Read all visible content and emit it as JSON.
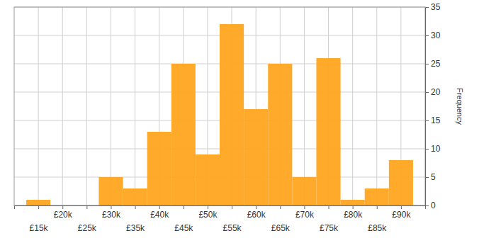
{
  "chart_data": {
    "type": "histogram",
    "bins": [
      12500,
      17500,
      22500,
      27500,
      32500,
      37500,
      42500,
      47500,
      52500,
      57500,
      62500,
      67500,
      72500,
      77500,
      82500,
      87500,
      92500
    ],
    "values": [
      1,
      0,
      0,
      5,
      3,
      13,
      25,
      9,
      32,
      17,
      25,
      5,
      26,
      1,
      3,
      8
    ],
    "color": "#ffa51f",
    "xlim": [
      10000,
      95000
    ],
    "xticks": [
      {
        "value": 15000,
        "label": "£15k"
      },
      {
        "value": 20000,
        "label": "£20k"
      },
      {
        "value": 25000,
        "label": "£25k"
      },
      {
        "value": 30000,
        "label": "£30k"
      },
      {
        "value": 35000,
        "label": "£35k"
      },
      {
        "value": 40000,
        "label": "£40k"
      },
      {
        "value": 45000,
        "label": "£45k"
      },
      {
        "value": 50000,
        "label": "£50k"
      },
      {
        "value": 55000,
        "label": "£55k"
      },
      {
        "value": 60000,
        "label": "£60k"
      },
      {
        "value": 65000,
        "label": "£65k"
      },
      {
        "value": 70000,
        "label": "£70k"
      },
      {
        "value": 75000,
        "label": "£75k"
      },
      {
        "value": 80000,
        "label": "£80k"
      },
      {
        "value": 85000,
        "label": "£85k"
      },
      {
        "value": 90000,
        "label": "£90k"
      }
    ],
    "ylim": [
      0,
      35
    ],
    "yticks": [
      0,
      5,
      10,
      15,
      20,
      25,
      30,
      35
    ],
    "y_label": "Frequency",
    "grid": true
  }
}
